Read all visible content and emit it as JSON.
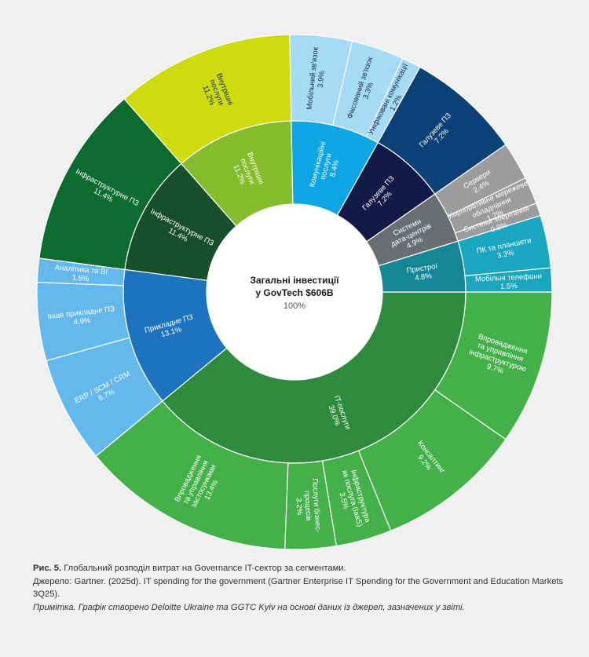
{
  "chart_data": {
    "type": "sunburst",
    "center": {
      "title_line1": "Загальні інвестиції",
      "title_line2": "у GovTech $606B",
      "value": "100%"
    },
    "inner_ring": [
      {
        "id": "it",
        "label": [
          "IT-послуги"
        ],
        "value": 39.0,
        "value_label": "39.0%",
        "color": "#2e8b3d",
        "text_color": "#ffffff"
      },
      {
        "id": "app",
        "label": [
          "Прикладне ПЗ"
        ],
        "value": 13.1,
        "value_label": "13.1%",
        "color": "#1e73be",
        "text_color": "#ffffff"
      },
      {
        "id": "infra",
        "label": [
          "Інфраструктурне ПЗ"
        ],
        "value": 11.4,
        "value_label": "11.4%",
        "color": "#174f2b",
        "text_color": "#ffffff"
      },
      {
        "id": "internal",
        "label": [
          "Внутрішні",
          "послуги"
        ],
        "value": 11.2,
        "value_label": "11.2%",
        "color": "#84bc2b",
        "text_color": "#ffffff"
      },
      {
        "id": "comm",
        "label": [
          "Комунікаційні",
          "послуги"
        ],
        "value": 8.4,
        "value_label": "8.4%",
        "color": "#0ea5e4",
        "text_color": "#ffffff"
      },
      {
        "id": "industry",
        "label": [
          "Галузеве ПЗ"
        ],
        "value": 7.2,
        "value_label": "7.2%",
        "color": "#141a47",
        "text_color": "#ffffff"
      },
      {
        "id": "dc",
        "label": [
          "Системи",
          "дата-центрів"
        ],
        "value": 4.9,
        "value_label": "4.9%",
        "color": "#6b6e70",
        "text_color": "#ffffff"
      },
      {
        "id": "devices",
        "label": [
          "Пристрої"
        ],
        "value": 4.8,
        "value_label": "4.8%",
        "color": "#138796",
        "text_color": "#ffffff"
      }
    ],
    "outer_ring": [
      {
        "parent": "it",
        "label": [
          "Впровадження",
          "та управління",
          "інфраструктурою"
        ],
        "value": 9.7,
        "value_label": "9.7%",
        "color": "#44b04a",
        "text_color": "#ffffff"
      },
      {
        "parent": "it",
        "label": [
          "Консалтинг"
        ],
        "value": 9.2,
        "value_label": "9.2%",
        "color": "#44b04a",
        "text_color": "#ffffff"
      },
      {
        "parent": "it",
        "label": [
          "Інфраструктура",
          "як послуга (IaaS)"
        ],
        "value": 3.5,
        "value_label": "3.5%",
        "color": "#44b04a",
        "text_color": "#ffffff"
      },
      {
        "parent": "it",
        "label": [
          "Послуги бізнес-",
          "процесів"
        ],
        "value": 3.2,
        "value_label": "3.2%",
        "color": "#44b04a",
        "text_color": "#ffffff"
      },
      {
        "parent": "app",
        "label": [
          "ERP / SCM / CRM"
        ],
        "value": 6.7,
        "value_label": "6.7%",
        "color": "#65b8ec",
        "text_color": "#ffffff"
      },
      {
        "parent": "app",
        "label": [
          "Інше прикладне ПЗ"
        ],
        "value": 4.9,
        "value_label": "4.9%",
        "color": "#65b8ec",
        "text_color": "#ffffff"
      },
      {
        "parent": "app",
        "label": [
          "Аналітика та BI"
        ],
        "value": 1.5,
        "value_label": "1.5%",
        "color": "#65b8ec",
        "text_color": "#ffffff"
      },
      {
        "parent": "infra",
        "label": [
          "Інфраструктурне ПЗ"
        ],
        "value": 11.4,
        "value_label": "11.4%",
        "color": "#0c6b2f",
        "text_color": "#ffffff"
      },
      {
        "parent": "internal",
        "label": [
          "Внутрішні",
          "послуги"
        ],
        "value": 11.2,
        "value_label": "11.2%",
        "color": "#cddb0f",
        "text_color": "#1a2a30"
      },
      {
        "parent": "comm",
        "label": [
          "Мобільний зв'язок"
        ],
        "value": 3.9,
        "value_label": "3.9%",
        "color": "#a6dbf6",
        "text_color": "#1a2a4a"
      },
      {
        "parent": "comm",
        "label": [
          "Фіксований зв'язок"
        ],
        "value": 3.3,
        "value_label": "3.3%",
        "color": "#a6dbf6",
        "text_color": "#1a2a4a"
      },
      {
        "parent": "comm",
        "label": [
          "Уніфіковані комунікації"
        ],
        "value": 1.2,
        "value_label": "1.2%",
        "color": "#a6dbf6",
        "text_color": "#1a2a4a"
      },
      {
        "parent": "industry",
        "label": [
          "Галузеве ПЗ"
        ],
        "value": 7.2,
        "value_label": "7.2%",
        "color": "#0c4177",
        "text_color": "#ffffff"
      },
      {
        "parent": "dc",
        "label": [
          "Сервери"
        ],
        "value": 2.4,
        "value_label": "2.4%",
        "color": "#9a9c9e",
        "text_color": "#ffffff"
      },
      {
        "parent": "dc",
        "label": [
          "Корпоративне мережеве",
          "обладнання"
        ],
        "value": 1.7,
        "value_label": "1.7%",
        "color": "#9a9c9e",
        "text_color": "#ffffff"
      },
      {
        "parent": "dc",
        "label": [
          "Системи зберігання"
        ],
        "value": 0.8,
        "value_label": "0.8%",
        "color": "#9a9c9e",
        "text_color": "#ffffff"
      },
      {
        "parent": "devices",
        "label": [
          "ПК та планшети"
        ],
        "value": 3.3,
        "value_label": "3.3%",
        "color": "#1aa6bf",
        "text_color": "#ffffff"
      },
      {
        "parent": "devices",
        "label": [
          "Мобільні телефони"
        ],
        "value": 1.5,
        "value_label": "1.5%",
        "color": "#1aa6bf",
        "text_color": "#ffffff"
      },
      {
        "parent": "it",
        "label": [
          "Впровадження",
          "та управління",
          "застосунками"
        ],
        "value": 13.4,
        "value_label": "13.4%",
        "color": "#44b04a",
        "text_color": "#ffffff"
      }
    ]
  },
  "caption": {
    "figure_label": "Рис. 5.",
    "figure_title": " Глобальний розподіл витрат на Governance IT-сектор за сегментами.",
    "source": "Джерело: Gartner. (2025d). IT spending for the government (Gartner Enterprise IT Spending for the Government and Education Markets 3Q25).",
    "note": "Примітка. Графік створено Deloitte Ukraine та GGTC Kyiv на основі даних із джерел, зазначених у звіті."
  }
}
